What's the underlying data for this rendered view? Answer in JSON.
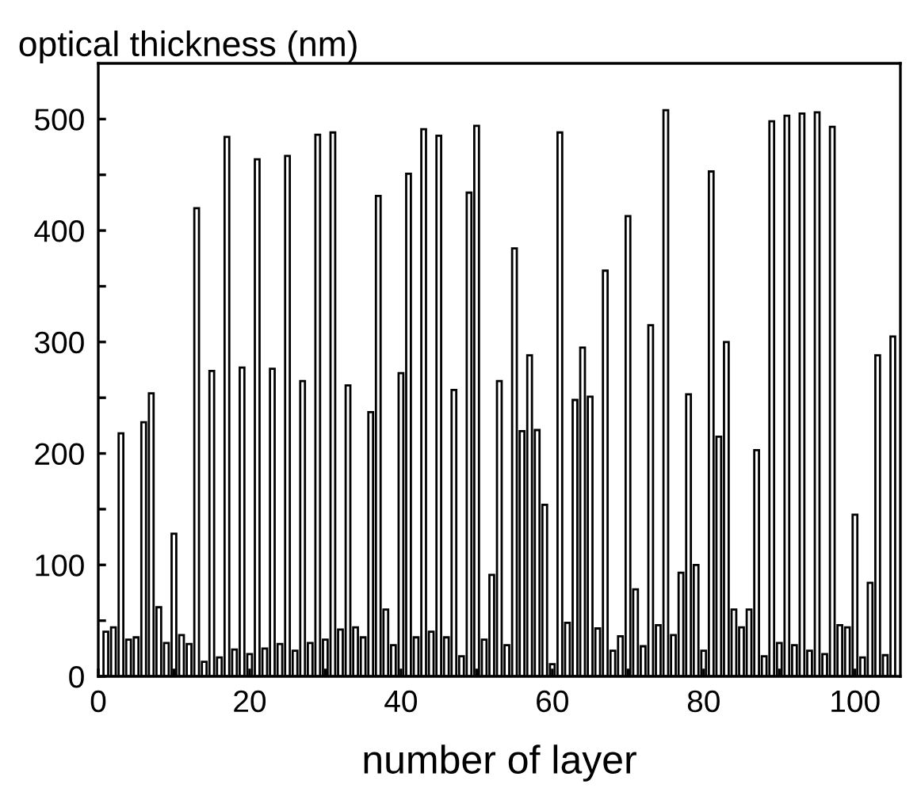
{
  "chart_data": {
    "type": "bar",
    "ylabel": "optical thickness (nm)",
    "xlabel": "number of layer",
    "x": [
      1,
      2,
      3,
      4,
      5,
      6,
      7,
      8,
      9,
      10,
      11,
      12,
      13,
      14,
      15,
      16,
      17,
      18,
      19,
      20,
      21,
      22,
      23,
      24,
      25,
      26,
      27,
      28,
      29,
      30,
      31,
      32,
      33,
      34,
      35,
      36,
      37,
      38,
      39,
      40,
      41,
      42,
      43,
      44,
      45,
      46,
      47,
      48,
      49,
      50,
      51,
      52,
      53,
      54,
      55,
      56,
      57,
      58,
      59,
      60,
      61,
      62,
      63,
      64,
      65,
      66,
      67,
      68,
      69,
      70,
      71,
      72,
      73,
      74,
      75,
      76,
      77,
      78,
      79,
      80,
      81,
      82,
      83,
      84,
      85,
      86,
      87,
      88,
      89,
      90,
      91,
      92,
      93,
      94,
      95,
      96,
      97,
      98,
      99,
      100,
      101,
      102,
      103,
      104,
      105
    ],
    "values": [
      40,
      44,
      218,
      33,
      35,
      228,
      254,
      62,
      30,
      128,
      37,
      29,
      420,
      13,
      274,
      17,
      484,
      24,
      277,
      20,
      464,
      25,
      276,
      29,
      467,
      23,
      265,
      30,
      486,
      33,
      488,
      42,
      261,
      44,
      35,
      237,
      431,
      60,
      28,
      272,
      451,
      35,
      491,
      40,
      485,
      35,
      257,
      18,
      434,
      494,
      33,
      91,
      265,
      28,
      384,
      220,
      288,
      221,
      154,
      11,
      488,
      48,
      248,
      295,
      251,
      43,
      364,
      23,
      36,
      413,
      78,
      27,
      315,
      46,
      508,
      37,
      93,
      253,
      100,
      23,
      453,
      215,
      300,
      60,
      44,
      60,
      203,
      18,
      498,
      30,
      503,
      28,
      505,
      23,
      506,
      20,
      493,
      46,
      44,
      145,
      17,
      84,
      288,
      19,
      305
    ],
    "color": "#ffffff",
    "xlim": [
      0,
      106
    ],
    "ylim": [
      0,
      550
    ],
    "xticks": [
      0,
      {
        "value": 10,
        "label": null
      },
      20,
      {
        "value": 30,
        "label": null
      },
      40,
      {
        "value": 50,
        "label": null
      },
      60,
      {
        "value": 70,
        "label": null
      },
      80,
      {
        "value": 90,
        "label": null
      },
      100
    ],
    "yticks": [
      0,
      {
        "value": 50,
        "label": null
      },
      100,
      {
        "value": 150,
        "label": null
      },
      200,
      {
        "value": 250,
        "label": null
      },
      300,
      {
        "value": 350,
        "label": null
      },
      400,
      {
        "value": 450,
        "label": null
      },
      500
    ],
    "grid": false,
    "legend": false
  }
}
